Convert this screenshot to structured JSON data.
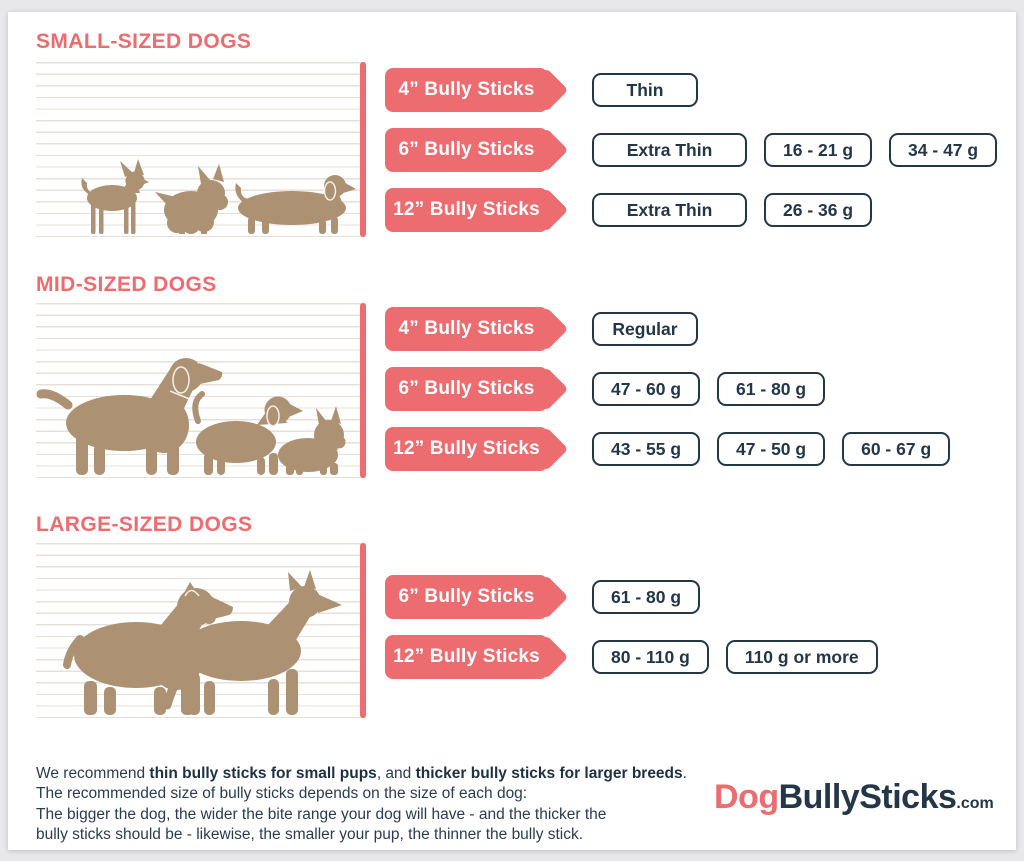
{
  "page": {
    "background": "#E8E8EA",
    "card_background": "#FFFFFF"
  },
  "colors": {
    "accent_coral": "#ED6C6F",
    "text_navy": "#233748",
    "dog_silhouette_tan": "#AD9173",
    "ruled_line": "#E7E0D8"
  },
  "sections": [
    {
      "title": "SMALL-SIZED DOGS",
      "dogs": [
        "chihuahua",
        "yorkshire-terrier",
        "dachshund"
      ],
      "rows": [
        {
          "label": "4” Bully Sticks",
          "boxes": [
            "Thin"
          ]
        },
        {
          "label": "6” Bully Sticks",
          "boxes": [
            "Extra Thin",
            "16 - 21 g",
            "34 - 47 g"
          ]
        },
        {
          "label": "12” Bully Sticks",
          "boxes": [
            "Extra Thin",
            "26 - 36 g"
          ]
        }
      ]
    },
    {
      "title": "MID-SIZED DOGS",
      "dogs": [
        "labrador",
        "beagle",
        "french-bulldog"
      ],
      "rows": [
        {
          "label": "4” Bully Sticks",
          "boxes": [
            "Regular"
          ]
        },
        {
          "label": "6” Bully Sticks",
          "boxes": [
            "47 - 60 g",
            "61 - 80 g"
          ]
        },
        {
          "label": "12” Bully Sticks",
          "boxes": [
            "43 - 55 g",
            "47 - 50 g",
            "60 - 67 g"
          ]
        }
      ]
    },
    {
      "title": "LARGE-SIZED DOGS",
      "dogs": [
        "rottweiler",
        "german-shepherd"
      ],
      "rows": [
        {
          "label": "6” Bully Sticks",
          "boxes": [
            "61 - 80 g"
          ]
        },
        {
          "label": "12” Bully Sticks",
          "boxes": [
            "80 - 110 g",
            "110 g or more"
          ]
        }
      ]
    }
  ],
  "footer": {
    "paragraph": [
      {
        "text": "We recommend ",
        "bold": false
      },
      {
        "text": "thin bully sticks for small pups",
        "bold": true
      },
      {
        "text": ", and ",
        "bold": false
      },
      {
        "text": "thicker bully sticks for larger breeds",
        "bold": true
      },
      {
        "text": ". The recommended size of bully sticks depends on the size of each dog:\nThe bigger the dog, the wider the bite range your dog will have - and the thicker the\nbully sticks should be -  likewise, the smaller your pup, the thinner the bully stick.",
        "bold": false
      }
    ],
    "logo": {
      "part1": "Dog",
      "part2": "BullySticks",
      "suffix": ".com"
    }
  }
}
